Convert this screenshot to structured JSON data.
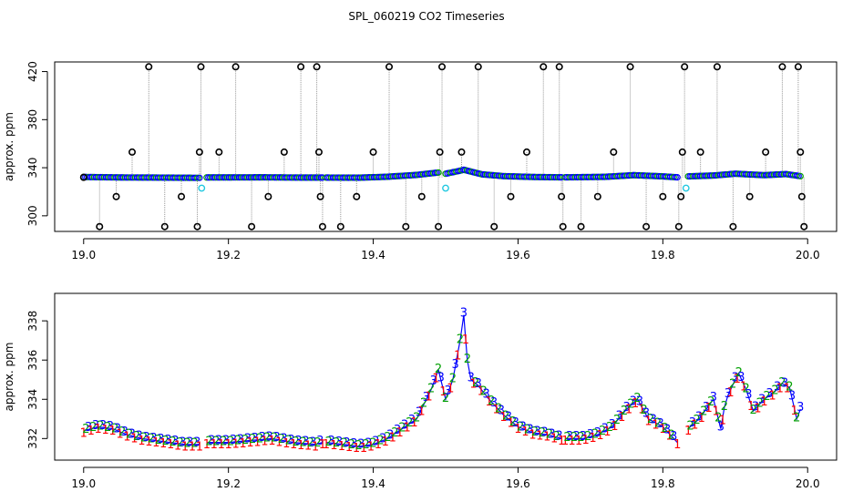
{
  "figure_title": "SPL_060219  CO2 Timeseries",
  "colors": {
    "black": "#000000",
    "blue": "#0000ff",
    "green": "#00a000",
    "red": "#ff0000",
    "cyan": "#22c8e0",
    "gray": "#999999"
  },
  "chart_data": [
    {
      "type": "scatter",
      "title": "",
      "xlabel": "",
      "ylabel": "approx. ppm",
      "xlim": [
        18.96,
        20.04
      ],
      "ylim": [
        287,
        428
      ],
      "xticks": [
        "19.0",
        "19.2",
        "19.4",
        "19.6",
        "19.8",
        "20.0"
      ],
      "xtick_values": [
        19.0,
        19.2,
        19.4,
        19.6,
        19.8,
        20.0
      ],
      "yticks": [
        "300",
        "340",
        "380",
        "420"
      ],
      "ytick_values": [
        300,
        340,
        380,
        420
      ],
      "grid": false,
      "baseline_segments": [
        {
          "x": [
            19.0,
            19.05,
            19.1,
            19.15,
            19.16
          ],
          "y": [
            332.3,
            331.9,
            331.8,
            331.6,
            331.6
          ]
        },
        {
          "x": [
            19.17,
            19.25,
            19.3,
            19.33
          ],
          "y": [
            331.9,
            332.0,
            331.8,
            331.8
          ]
        },
        {
          "x": [
            19.335,
            19.38,
            19.42,
            19.46,
            19.49
          ],
          "y": [
            331.8,
            331.7,
            332.5,
            334.0,
            336.0
          ]
        },
        {
          "x": [
            19.5,
            19.52,
            19.525,
            19.55,
            19.58,
            19.62,
            19.66
          ],
          "y": [
            335.0,
            337.5,
            338.3,
            334.5,
            333.0,
            332.3,
            332.0
          ]
        },
        {
          "x": [
            19.665,
            19.72,
            19.76,
            19.8,
            19.82
          ],
          "y": [
            332.0,
            332.4,
            333.8,
            332.8,
            332.0
          ]
        },
        {
          "x": [
            19.835,
            19.87,
            19.9,
            19.94,
            19.97,
            19.99
          ],
          "y": [
            332.8,
            333.5,
            335.0,
            333.8,
            334.7,
            333.0
          ]
        }
      ],
      "spikes": [
        {
          "x": 19.0,
          "y": 332
        },
        {
          "x": 19.022,
          "y": 291
        },
        {
          "x": 19.045,
          "y": 316
        },
        {
          "x": 19.067,
          "y": 353
        },
        {
          "x": 19.09,
          "y": 424
        },
        {
          "x": 19.112,
          "y": 291
        },
        {
          "x": 19.135,
          "y": 316
        },
        {
          "x": 19.157,
          "y": 291
        },
        {
          "x": 19.16,
          "y": 353
        },
        {
          "x": 19.162,
          "y": 424
        },
        {
          "x": 19.187,
          "y": 353
        },
        {
          "x": 19.21,
          "y": 424
        },
        {
          "x": 19.232,
          "y": 291
        },
        {
          "x": 19.255,
          "y": 316
        },
        {
          "x": 19.277,
          "y": 353
        },
        {
          "x": 19.3,
          "y": 424
        },
        {
          "x": 19.322,
          "y": 424
        },
        {
          "x": 19.325,
          "y": 353
        },
        {
          "x": 19.327,
          "y": 316
        },
        {
          "x": 19.33,
          "y": 291
        },
        {
          "x": 19.355,
          "y": 291
        },
        {
          "x": 19.377,
          "y": 316
        },
        {
          "x": 19.4,
          "y": 353
        },
        {
          "x": 19.422,
          "y": 424
        },
        {
          "x": 19.445,
          "y": 291
        },
        {
          "x": 19.467,
          "y": 316
        },
        {
          "x": 19.49,
          "y": 291
        },
        {
          "x": 19.492,
          "y": 353
        },
        {
          "x": 19.495,
          "y": 424
        },
        {
          "x": 19.522,
          "y": 353
        },
        {
          "x": 19.545,
          "y": 424
        },
        {
          "x": 19.567,
          "y": 291
        },
        {
          "x": 19.59,
          "y": 316
        },
        {
          "x": 19.612,
          "y": 353
        },
        {
          "x": 19.635,
          "y": 424
        },
        {
          "x": 19.657,
          "y": 424
        },
        {
          "x": 19.66,
          "y": 316
        },
        {
          "x": 19.662,
          "y": 291
        },
        {
          "x": 19.687,
          "y": 291
        },
        {
          "x": 19.71,
          "y": 316
        },
        {
          "x": 19.732,
          "y": 353
        },
        {
          "x": 19.755,
          "y": 424
        },
        {
          "x": 19.777,
          "y": 291
        },
        {
          "x": 19.8,
          "y": 316
        },
        {
          "x": 19.822,
          "y": 291
        },
        {
          "x": 19.825,
          "y": 316
        },
        {
          "x": 19.827,
          "y": 353
        },
        {
          "x": 19.83,
          "y": 424
        },
        {
          "x": 19.852,
          "y": 353
        },
        {
          "x": 19.875,
          "y": 424
        },
        {
          "x": 19.897,
          "y": 291
        },
        {
          "x": 19.92,
          "y": 316
        },
        {
          "x": 19.942,
          "y": 353
        },
        {
          "x": 19.965,
          "y": 424
        },
        {
          "x": 19.987,
          "y": 424
        },
        {
          "x": 19.99,
          "y": 353
        },
        {
          "x": 19.992,
          "y": 316
        },
        {
          "x": 19.995,
          "y": 291
        }
      ],
      "cyan_points": [
        {
          "x": 19.163,
          "y": 323
        },
        {
          "x": 19.5,
          "y": 323
        },
        {
          "x": 19.832,
          "y": 323
        }
      ]
    },
    {
      "type": "line",
      "title": "",
      "xlabel": "",
      "ylabel": "approx. ppm",
      "xlim": [
        18.96,
        20.04
      ],
      "ylim": [
        330.9,
        339.4
      ],
      "xticks": [
        "19.0",
        "19.2",
        "19.4",
        "19.6",
        "19.8",
        "20.0"
      ],
      "xtick_values": [
        19.0,
        19.2,
        19.4,
        19.6,
        19.8,
        20.0
      ],
      "yticks": [
        "332",
        "334",
        "336",
        "338"
      ],
      "ytick_values": [
        332,
        334,
        336,
        338
      ],
      "grid": false,
      "marker_labels": [
        "1",
        "2",
        "3"
      ],
      "series_colors": [
        "#ff0000",
        "#00a000",
        "#0000ff"
      ],
      "segments": [
        {
          "x": [
            19.0,
            19.02,
            19.04,
            19.06,
            19.08,
            19.1,
            19.12,
            19.14,
            19.16
          ],
          "y": [
            332.4,
            332.6,
            332.5,
            332.2,
            332.0,
            331.9,
            331.8,
            331.7,
            331.7
          ]
        },
        {
          "x": [
            19.17,
            19.2,
            19.23,
            19.26,
            19.29,
            19.32,
            19.33
          ],
          "y": [
            331.8,
            331.8,
            331.9,
            332.0,
            331.8,
            331.7,
            331.8
          ]
        },
        {
          "x": [
            19.335,
            19.36,
            19.38,
            19.4,
            19.42,
            19.44,
            19.46,
            19.48,
            19.49,
            19.5,
            19.51,
            19.52,
            19.525,
            19.53,
            19.535,
            19.545,
            19.56,
            19.58,
            19.6,
            19.62,
            19.64,
            19.66
          ],
          "y": [
            331.8,
            331.7,
            331.6,
            331.7,
            332.0,
            332.5,
            333.0,
            334.5,
            335.5,
            334.0,
            335.0,
            337.0,
            338.3,
            336.0,
            335.0,
            334.7,
            334.0,
            333.2,
            332.6,
            332.3,
            332.2,
            332.0
          ]
        },
        {
          "x": [
            19.665,
            19.69,
            19.71,
            19.73,
            19.75,
            19.765,
            19.78,
            19.8,
            19.815,
            19.82
          ],
          "y": [
            332.0,
            332.0,
            332.2,
            332.6,
            333.5,
            334.0,
            333.0,
            332.6,
            332.0,
            331.8
          ]
        },
        {
          "x": [
            19.835,
            19.85,
            19.86,
            19.87,
            19.88,
            19.885,
            19.89,
            19.9,
            19.905,
            19.915,
            19.925,
            19.94,
            19.955,
            19.965,
            19.975,
            19.985,
            19.99
          ],
          "y": [
            332.5,
            333.0,
            333.5,
            334.0,
            332.5,
            333.6,
            334.2,
            335.0,
            335.3,
            334.5,
            333.4,
            334.0,
            334.4,
            334.8,
            334.6,
            333.0,
            333.5
          ]
        }
      ]
    }
  ]
}
